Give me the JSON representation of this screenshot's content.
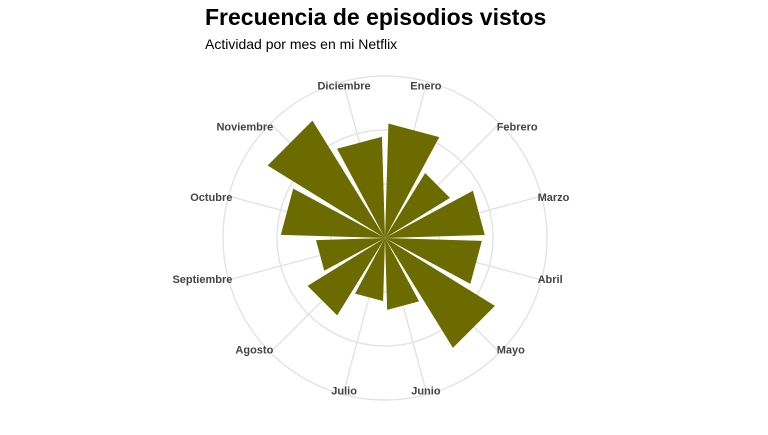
{
  "chart_data": {
    "type": "bar",
    "polar": true,
    "title": "Frecuencia de episodios vistos",
    "subtitle": "Actividad por mes en mi Netflix",
    "categories": [
      "Enero",
      "Febrero",
      "Marzo",
      "Abril",
      "Mayo",
      "Junio",
      "Julio",
      "Agosto",
      "Septiembre",
      "Octubre",
      "Noviembre",
      "Diciembre"
    ],
    "values": [
      78,
      52,
      68,
      66,
      88,
      49,
      43,
      62,
      47,
      71,
      94,
      69
    ],
    "bar_color": "#6b6b00",
    "grid_color": "#e3e3e3",
    "label_color": "#444444",
    "grid": true
  }
}
